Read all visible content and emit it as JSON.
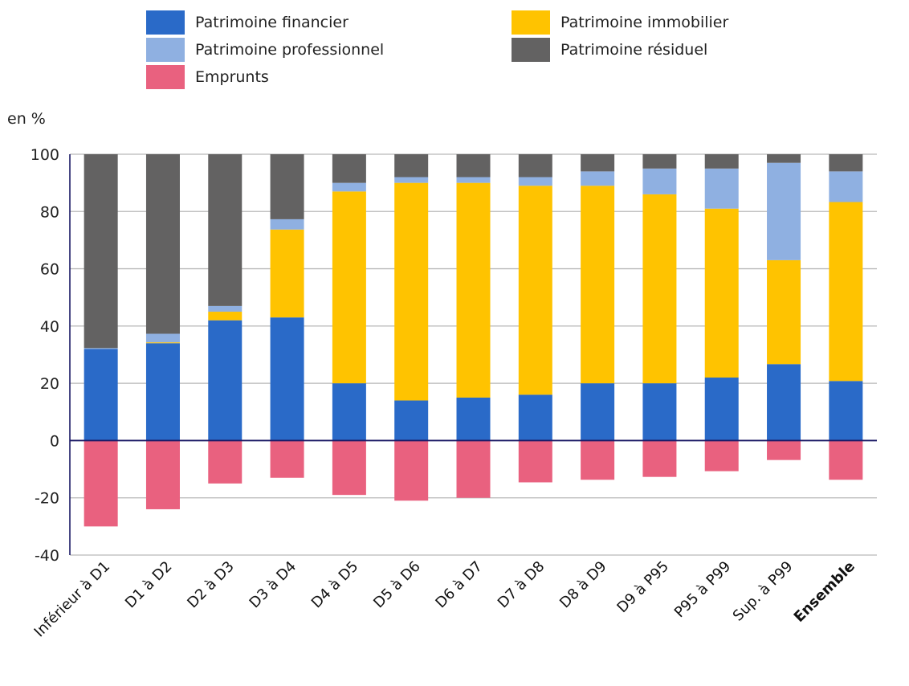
{
  "legend": {
    "items": [
      {
        "key": "financier",
        "label": "Patrimoine financier",
        "color": "#2a6ac8"
      },
      {
        "key": "immobilier",
        "label": "Patrimoine immobilier",
        "color": "#ffc300"
      },
      {
        "key": "professionnel",
        "label": "Patrimoine professionnel",
        "color": "#8fb0e1"
      },
      {
        "key": "residuel",
        "label": "Patrimoine résiduel",
        "color": "#636262"
      },
      {
        "key": "emprunts",
        "label": "Emprunts",
        "color": "#e9617f"
      }
    ]
  },
  "unit_label": "en %",
  "chart_data": {
    "type": "bar",
    "stacked": true,
    "title": "",
    "xlabel": "",
    "ylabel": "en %",
    "ylim": [
      -40,
      100
    ],
    "yticks": [
      100,
      80,
      60,
      40,
      20,
      0,
      -20,
      -40
    ],
    "grid": true,
    "legend_position": "top",
    "categories": [
      "Inférieur à D1",
      "D1 à D2",
      "D2 à D3",
      "D3 à D4",
      "D4 à D5",
      "D5 à D6",
      "D6 à D7",
      "D7 à D8",
      "D8 à D9",
      "D9 à P95",
      "P95 à P99",
      "Sup. à P99",
      "Ensemble"
    ],
    "bold_categories": [
      "Ensemble"
    ],
    "series": [
      {
        "name": "Patrimoine financier",
        "key": "financier",
        "color": "#2a6ac8",
        "values": [
          32,
          34,
          42,
          43,
          20,
          14,
          15,
          16,
          20,
          20,
          22,
          26.7,
          20.8
        ]
      },
      {
        "name": "Patrimoine immobilier",
        "key": "immobilier",
        "color": "#ffc300",
        "values": [
          0,
          0.3,
          3,
          30.7,
          67,
          76,
          75,
          73,
          69,
          66,
          59,
          36.3,
          62.5
        ]
      },
      {
        "name": "Patrimoine professionnel",
        "key": "professionnel",
        "color": "#8fb0e1",
        "values": [
          0.3,
          3,
          2,
          3.6,
          3,
          2,
          2,
          3,
          5,
          9,
          14,
          34,
          10.7
        ]
      },
      {
        "name": "Patrimoine résiduel",
        "key": "residuel",
        "color": "#636262",
        "values": [
          67.7,
          62.7,
          53,
          22.7,
          10,
          8,
          8,
          8,
          6,
          5,
          5,
          3,
          6
        ]
      },
      {
        "name": "Emprunts",
        "key": "emprunts",
        "color": "#e9617f",
        "values": [
          -30,
          -24,
          -15,
          -13,
          -19,
          -21,
          -20,
          -14.6,
          -13.7,
          -12.7,
          -10.7,
          -6.8,
          -13.7
        ]
      }
    ]
  }
}
